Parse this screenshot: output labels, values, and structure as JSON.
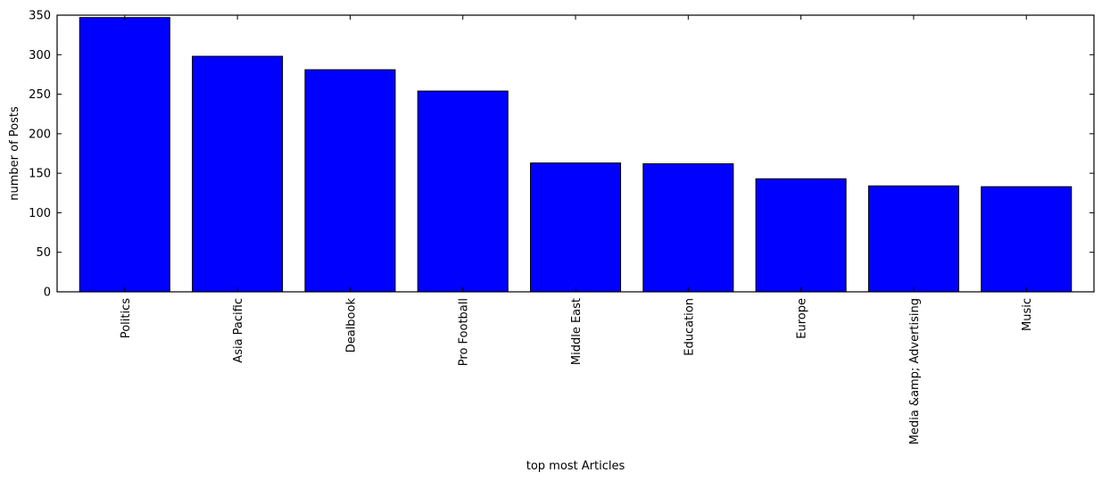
{
  "chart_data": {
    "type": "bar",
    "title": "",
    "xlabel": "top most Articles",
    "ylabel": "number of Posts",
    "categories": [
      "Politics",
      "Asia Pacific",
      "Dealbook",
      "Pro Football",
      "Middle East",
      "Education",
      "Europe",
      "Media &amp; Advertising",
      "Music"
    ],
    "values": [
      347,
      298,
      281,
      254,
      163,
      162,
      143,
      134,
      133
    ],
    "ylim": [
      0,
      350
    ],
    "yticks": [
      0,
      50,
      100,
      150,
      200,
      250,
      300,
      350
    ],
    "grid": false,
    "legend": "none",
    "colors": {
      "bar": "#0000ff",
      "edge": "#000000",
      "axes": "#000000",
      "background": "#ffffff"
    }
  }
}
